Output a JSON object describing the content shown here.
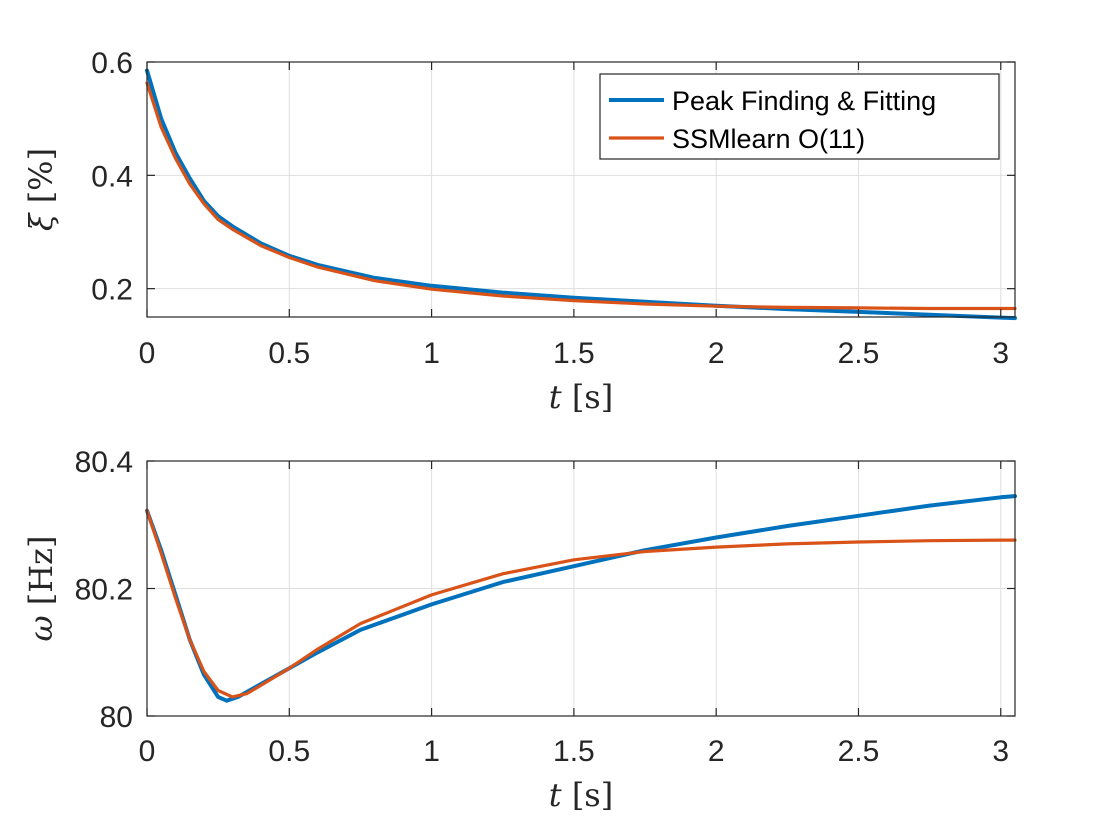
{
  "colors": {
    "series1": "#0072BD",
    "series2": "#D95319",
    "grid": "#dfdfdf",
    "axis": "#262626"
  },
  "chart_data": [
    {
      "type": "line",
      "xlim": [
        0,
        3.05
      ],
      "ylim": [
        0.15,
        0.6
      ],
      "xticks": [
        "0",
        "0.5",
        "1",
        "1.5",
        "2",
        "2.5",
        "3"
      ],
      "yticks": [
        "0.2",
        "0.4",
        "0.6"
      ],
      "xlabel": {
        "var": "t",
        "unit": " [s]"
      },
      "ylabel": {
        "var": "ξ",
        "unit": " [%]"
      },
      "grid": true,
      "legend": "top-right",
      "series": [
        {
          "name": "Peak Finding & Fitting",
          "x": [
            0,
            0.05,
            0.1,
            0.15,
            0.2,
            0.25,
            0.3,
            0.4,
            0.5,
            0.6,
            0.8,
            1.0,
            1.25,
            1.5,
            1.75,
            2.0,
            2.25,
            2.5,
            2.75,
            3.0,
            3.05
          ],
          "y": [
            0.585,
            0.5,
            0.44,
            0.395,
            0.355,
            0.328,
            0.31,
            0.28,
            0.258,
            0.242,
            0.219,
            0.205,
            0.193,
            0.184,
            0.177,
            0.17,
            0.164,
            0.159,
            0.154,
            0.149,
            0.148
          ]
        },
        {
          "name": "SSMlearn O(11)",
          "x": [
            0,
            0.05,
            0.1,
            0.15,
            0.2,
            0.25,
            0.3,
            0.4,
            0.5,
            0.6,
            0.8,
            1.0,
            1.25,
            1.5,
            1.75,
            2.0,
            2.25,
            2.5,
            2.75,
            3.0,
            3.05
          ],
          "y": [
            0.563,
            0.485,
            0.43,
            0.385,
            0.35,
            0.322,
            0.305,
            0.276,
            0.255,
            0.238,
            0.214,
            0.199,
            0.187,
            0.179,
            0.173,
            0.169,
            0.167,
            0.166,
            0.165,
            0.165,
            0.165
          ]
        }
      ]
    },
    {
      "type": "line",
      "xlim": [
        0,
        3.05
      ],
      "ylim": [
        80,
        80.4
      ],
      "xticks": [
        "0",
        "0.5",
        "1",
        "1.5",
        "2",
        "2.5",
        "3"
      ],
      "yticks": [
        "80",
        "80.2",
        "80.4"
      ],
      "xlabel": {
        "var": "t",
        "unit": " [s]"
      },
      "ylabel": {
        "var": "ω",
        "unit": " [Hz]"
      },
      "grid": true,
      "series": [
        {
          "name": "Peak Finding & Fitting",
          "x": [
            0,
            0.05,
            0.1,
            0.15,
            0.2,
            0.25,
            0.28,
            0.32,
            0.4,
            0.5,
            0.6,
            0.75,
            1.0,
            1.25,
            1.5,
            1.75,
            2.0,
            2.25,
            2.5,
            2.75,
            3.0,
            3.05
          ],
          "y": [
            80.322,
            80.26,
            80.19,
            80.12,
            80.065,
            80.03,
            80.024,
            80.03,
            80.05,
            80.075,
            80.1,
            80.135,
            80.175,
            80.21,
            80.235,
            80.26,
            80.28,
            80.298,
            80.314,
            80.33,
            80.343,
            80.345
          ]
        },
        {
          "name": "SSMlearn O(11)",
          "x": [
            0,
            0.05,
            0.1,
            0.15,
            0.2,
            0.25,
            0.3,
            0.35,
            0.4,
            0.5,
            0.6,
            0.75,
            1.0,
            1.25,
            1.5,
            1.75,
            2.0,
            2.25,
            2.5,
            2.75,
            3.0,
            3.05
          ],
          "y": [
            80.322,
            80.255,
            80.185,
            80.12,
            80.07,
            80.04,
            80.03,
            80.035,
            80.048,
            80.075,
            80.105,
            80.145,
            80.19,
            80.223,
            80.245,
            80.258,
            80.265,
            80.27,
            80.273,
            80.275,
            80.276,
            80.276
          ]
        }
      ]
    }
  ]
}
